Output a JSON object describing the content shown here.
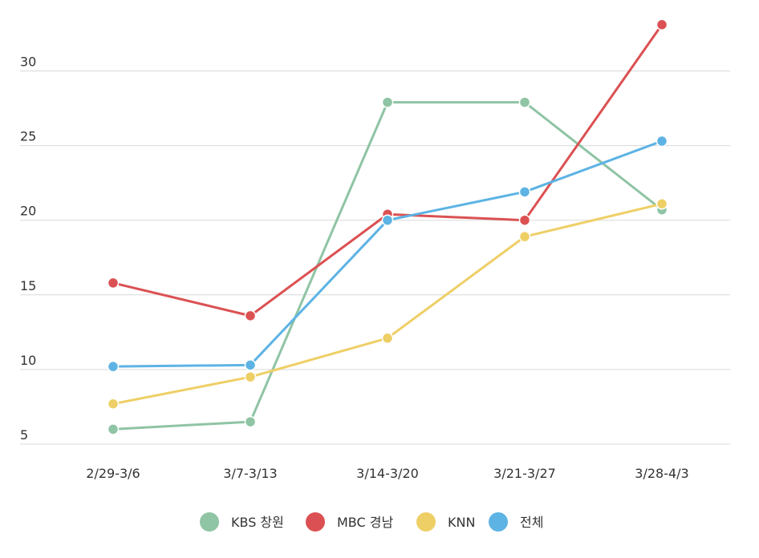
{
  "chart_data": {
    "type": "line",
    "categories": [
      "2/29-3/6",
      "3/7-3/13",
      "3/14-3/20",
      "3/21-3/27",
      "3/28-4/3"
    ],
    "series": [
      {
        "name": "KBS 창원",
        "color": "#8fc4a4",
        "values": [
          6.0,
          6.5,
          27.9,
          27.9,
          20.7
        ]
      },
      {
        "name": "MBC 경남",
        "color": "#db5153",
        "values": [
          15.8,
          13.6,
          20.4,
          20.0,
          33.1
        ]
      },
      {
        "name": "KNN",
        "color": "#eecf66",
        "values": [
          7.7,
          9.5,
          12.1,
          18.9,
          21.1
        ]
      },
      {
        "name": "전체",
        "color": "#5db3e4",
        "values": [
          10.2,
          10.3,
          20.0,
          21.9,
          25.3
        ]
      }
    ],
    "y_ticks": [
      "5",
      "10",
      "15",
      "20",
      "25",
      "30"
    ],
    "ylim": [
      5,
      33
    ],
    "grid": true,
    "legend_position": "bottom-center",
    "title": "",
    "xlabel": "",
    "ylabel": ""
  }
}
